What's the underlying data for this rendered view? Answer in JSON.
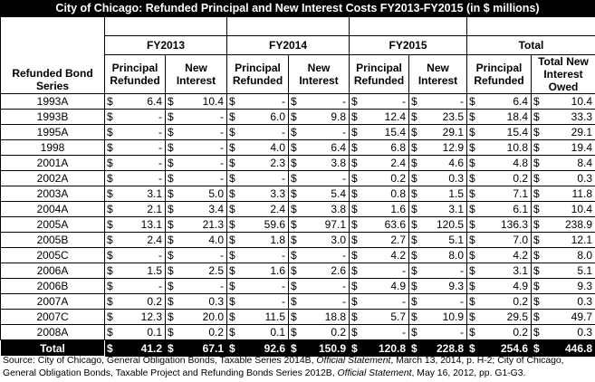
{
  "title": "City of Chicago: Refunded Principal and New Interest Costs FY2013-FY2015 (in $ millions)",
  "headers": {
    "series_label": "Refunded Bond Series",
    "years": [
      "FY2013",
      "FY2014",
      "FY2015",
      "Total"
    ],
    "col_principal": "Principal Refunded",
    "col_interest": "New Interest",
    "col_total_interest": "Total New Interest Owed"
  },
  "currency": "$",
  "rows": [
    {
      "series": "1993A",
      "v": [
        "6.4",
        "10.4",
        "-",
        "-",
        "-",
        "-",
        "6.4",
        "10.4"
      ]
    },
    {
      "series": "1993B",
      "v": [
        "-",
        "-",
        "6.0",
        "9.8",
        "12.4",
        "23.5",
        "18.4",
        "33.3"
      ]
    },
    {
      "series": "1995A",
      "v": [
        "-",
        "-",
        "-",
        "-",
        "15.4",
        "29.1",
        "15.4",
        "29.1"
      ]
    },
    {
      "series": "1998",
      "v": [
        "-",
        "-",
        "4.0",
        "6.4",
        "6.8",
        "12.9",
        "10.8",
        "19.4"
      ]
    },
    {
      "series": "2001A",
      "v": [
        "-",
        "-",
        "2.3",
        "3.8",
        "2.4",
        "4.6",
        "4.8",
        "8.4"
      ]
    },
    {
      "series": "2002A",
      "v": [
        "-",
        "-",
        "-",
        "-",
        "0.2",
        "0.3",
        "0.2",
        "0.3"
      ]
    },
    {
      "series": "2003A",
      "v": [
        "3.1",
        "5.0",
        "3.3",
        "5.4",
        "0.8",
        "1.5",
        "7.1",
        "11.8"
      ]
    },
    {
      "series": "2004A",
      "v": [
        "2.1",
        "3.4",
        "2.4",
        "3.8",
        "1.6",
        "3.1",
        "6.1",
        "10.4"
      ]
    },
    {
      "series": "2005A",
      "v": [
        "13.1",
        "21.3",
        "59.6",
        "97.1",
        "63.6",
        "120.5",
        "136.3",
        "238.9"
      ]
    },
    {
      "series": "2005B",
      "v": [
        "2.4",
        "4.0",
        "1.8",
        "3.0",
        "2.7",
        "5.1",
        "7.0",
        "12.1"
      ]
    },
    {
      "series": "2005C",
      "v": [
        "-",
        "-",
        "-",
        "-",
        "4.2",
        "8.0",
        "4.2",
        "8.0"
      ]
    },
    {
      "series": "2006A",
      "v": [
        "1.5",
        "2.5",
        "1.6",
        "2.6",
        "-",
        "-",
        "3.1",
        "5.1"
      ]
    },
    {
      "series": "2006B",
      "v": [
        "-",
        "-",
        "-",
        "-",
        "4.9",
        "9.3",
        "4.9",
        "9.3"
      ]
    },
    {
      "series": "2007A",
      "v": [
        "0.2",
        "0.3",
        "-",
        "-",
        "-",
        "-",
        "0.2",
        "0.3"
      ]
    },
    {
      "series": "2007C",
      "v": [
        "12.3",
        "20.0",
        "11.5",
        "18.8",
        "5.7",
        "10.9",
        "29.5",
        "49.7"
      ]
    },
    {
      "series": "2008A",
      "v": [
        "0.1",
        "0.2",
        "0.1",
        "0.2",
        "-",
        "-",
        "0.2",
        "0.3"
      ]
    }
  ],
  "total": {
    "series": "Total",
    "v": [
      "41.2",
      "67.1",
      "92.6",
      "150.9",
      "120.8",
      "228.8",
      "254.6",
      "446.8"
    ]
  },
  "source": {
    "part1": "Source: City of Chicago, General Obligation Bonds, Taxable Series 2014B, ",
    "italic1": "Official Statement",
    "part2": ", March 13, 2014, p. H-2; City of Chicago, General Obligation Bonds, Taxable Project and Refunding Bonds Series 2012B, ",
    "italic2": "Official Statement",
    "part3": ", May 16, 2012, pp. G1-G3."
  }
}
